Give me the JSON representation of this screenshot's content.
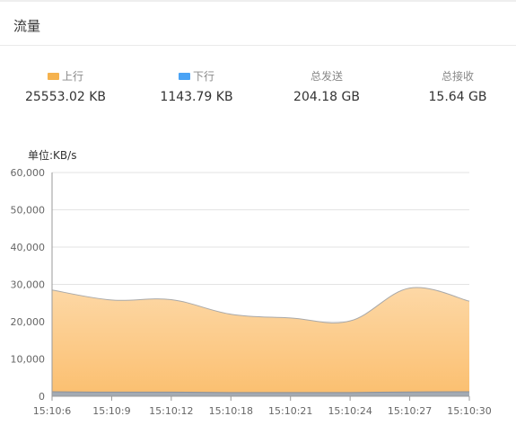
{
  "panel": {
    "title": "流量"
  },
  "stats": [
    {
      "label": "上行",
      "value": "25553.02 KB",
      "color": "#f5b24e"
    },
    {
      "label": "下行",
      "value": "1143.79 KB",
      "color": "#4aa3f5"
    },
    {
      "label": "总发送",
      "value": "204.18 GB"
    },
    {
      "label": "总接收",
      "value": "15.64 GB"
    }
  ],
  "chart_data": {
    "type": "area",
    "unit_label": "单位:KB/s",
    "x": [
      "15:10:6",
      "15:10:9",
      "15:10:12",
      "15:10:18",
      "15:10:21",
      "15:10:24",
      "15:10:27",
      "15:10:30"
    ],
    "series": [
      {
        "name": "上行",
        "values": [
          28500,
          25800,
          25900,
          22000,
          21000,
          20200,
          29000,
          25500
        ],
        "color": "#f5b24e"
      },
      {
        "name": "下行",
        "values": [
          1200,
          1100,
          1100,
          1000,
          1000,
          1000,
          1150,
          1200
        ],
        "color": "#4aa3f5"
      }
    ],
    "yticks": [
      "0",
      "10,000",
      "20,000",
      "30,000",
      "40,000",
      "50,000",
      "60,000"
    ],
    "ylim": [
      0,
      60000
    ],
    "grid": true
  }
}
